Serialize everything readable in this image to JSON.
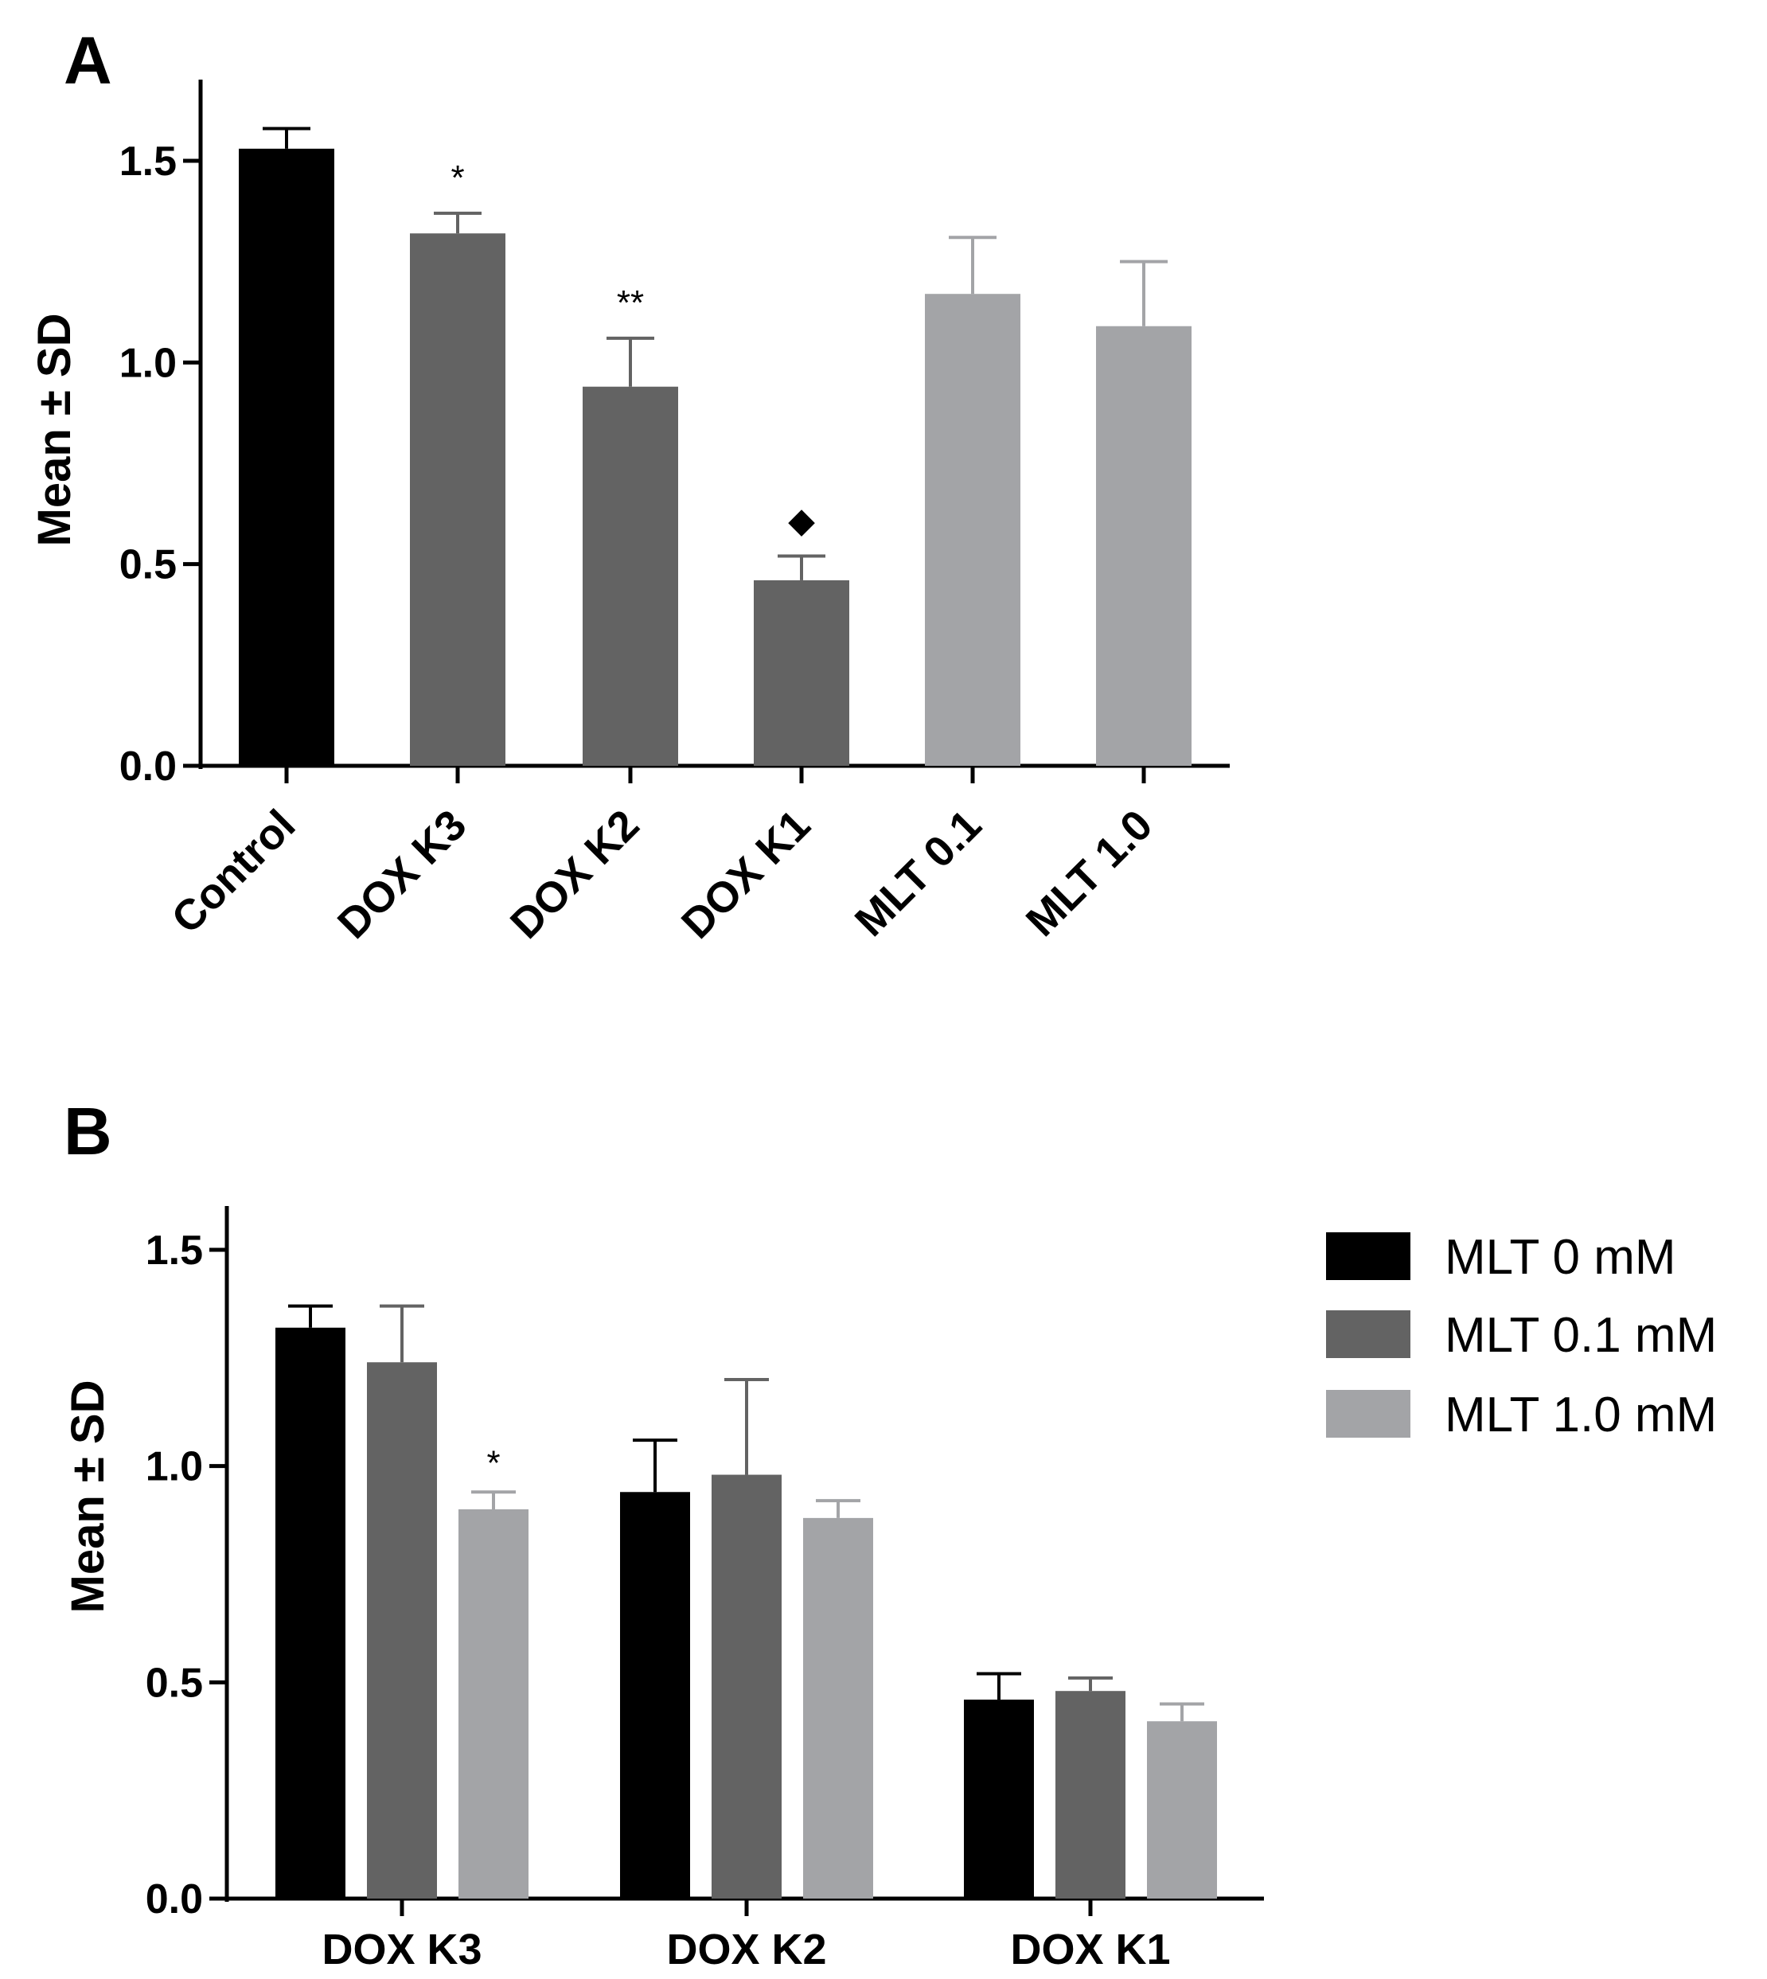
{
  "colors": {
    "control": "#000000",
    "dox": "#636363",
    "mlt": "#a3a4a7",
    "mlt_0": "#000000",
    "mlt_01": "#636363",
    "mlt_10": "#a3a4a7",
    "axis": "#000000"
  },
  "chart_data": [
    {
      "panel": "A",
      "type": "bar",
      "ylabel": "Mean ± SD",
      "ylim": [
        0,
        1.7
      ],
      "yticks": [
        "0.0",
        "0.5",
        "1.0",
        "1.5"
      ],
      "ytick_values": [
        0,
        0.5,
        1.0,
        1.5
      ],
      "categories": [
        "Control",
        "DOX K3",
        "DOX K2",
        "DOX K1",
        "MLT 0.1",
        "MLT 1.0"
      ],
      "values": [
        1.53,
        1.32,
        0.94,
        0.46,
        1.17,
        1.09
      ],
      "errors": [
        0.05,
        0.05,
        0.12,
        0.06,
        0.14,
        0.16
      ],
      "bar_colors": [
        "control",
        "dox",
        "dox",
        "dox",
        "mlt",
        "mlt"
      ],
      "annotations": [
        "",
        "*",
        "**",
        "◆",
        "",
        ""
      ]
    },
    {
      "panel": "B",
      "type": "bar",
      "ylabel": "Mean ± SD",
      "ylim": [
        0,
        1.6
      ],
      "yticks": [
        "0.0",
        "0.5",
        "1.0",
        "1.5"
      ],
      "ytick_values": [
        0,
        0.5,
        1.0,
        1.5
      ],
      "categories": [
        "DOX K3",
        "DOX K2",
        "DOX K1"
      ],
      "series": [
        {
          "name": "MLT 0 mM",
          "color": "mlt_0",
          "values": [
            1.32,
            0.94,
            0.46
          ],
          "errors": [
            0.05,
            0.12,
            0.06
          ],
          "annotations": [
            "",
            "",
            ""
          ]
        },
        {
          "name": "MLT 0.1 mM",
          "color": "mlt_01",
          "values": [
            1.24,
            0.98,
            0.48
          ],
          "errors": [
            0.13,
            0.22,
            0.03
          ],
          "annotations": [
            "",
            "",
            ""
          ]
        },
        {
          "name": "MLT 1.0 mM",
          "color": "mlt_10",
          "values": [
            0.9,
            0.88,
            0.41
          ],
          "errors": [
            0.04,
            0.04,
            0.04
          ],
          "annotations": [
            "*",
            "",
            ""
          ]
        }
      ],
      "legend_position": "top-right"
    }
  ]
}
